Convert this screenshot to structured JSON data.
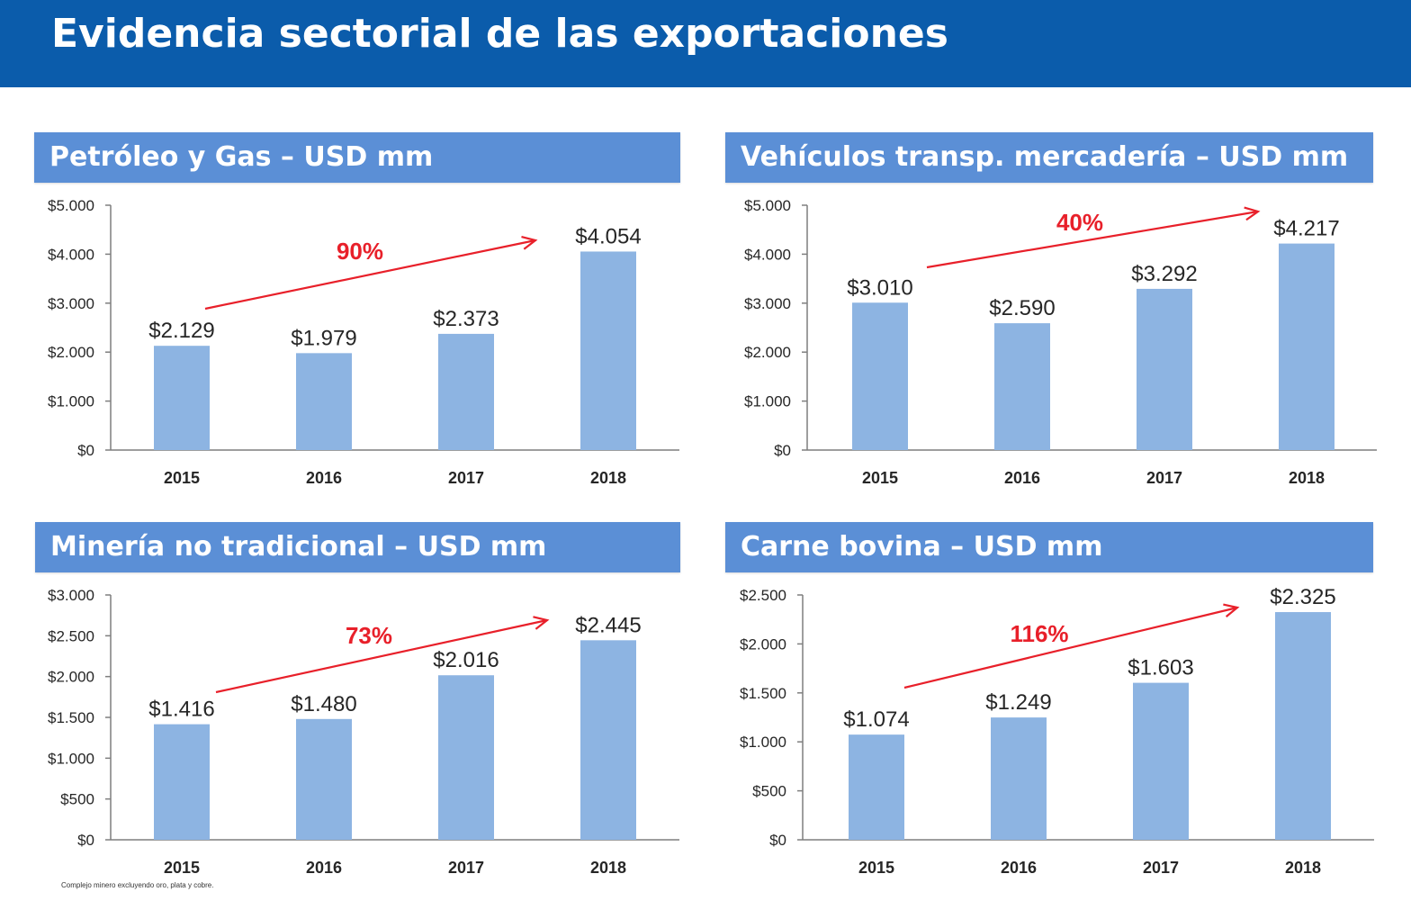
{
  "page": {
    "title": "Evidencia sectorial de las exportaciones",
    "footnote": "Complejo minero excluyendo oro, plata y cobre."
  },
  "colors": {
    "band": "#0b5cab",
    "header": "#5b8fd6",
    "bar": "#8db4e2",
    "arrow": "#e8202a",
    "text": "#262626"
  },
  "chart_data": [
    {
      "type": "bar",
      "title": "Petróleo y Gas – USD mm",
      "categories": [
        "2015",
        "2016",
        "2017",
        "2018"
      ],
      "values": [
        2129,
        1979,
        2373,
        4054
      ],
      "data_labels": [
        "$2.129",
        "$1.979",
        "$2.373",
        "$4.054"
      ],
      "ylim": [
        0,
        5000
      ],
      "y_ticks": [
        0,
        1000,
        2000,
        3000,
        4000,
        5000
      ],
      "y_tick_labels": [
        "$0",
        "$1.000",
        "$2.000",
        "$3.000",
        "$4.000",
        "$5.000"
      ],
      "growth_label": "90%",
      "grid": false
    },
    {
      "type": "bar",
      "title": "Vehículos transp. mercadería – USD mm",
      "categories": [
        "2015",
        "2016",
        "2017",
        "2018"
      ],
      "values": [
        3010,
        2590,
        3292,
        4217
      ],
      "data_labels": [
        "$3.010",
        "$2.590",
        "$3.292",
        "$4.217"
      ],
      "ylim": [
        0,
        5000
      ],
      "y_ticks": [
        0,
        1000,
        2000,
        3000,
        4000,
        5000
      ],
      "y_tick_labels": [
        "$0",
        "$1.000",
        "$2.000",
        "$3.000",
        "$4.000",
        "$5.000"
      ],
      "growth_label": "40%",
      "grid": false
    },
    {
      "type": "bar",
      "title": "Minería no tradicional – USD mm",
      "categories": [
        "2015",
        "2016",
        "2017",
        "2018"
      ],
      "values": [
        1416,
        1480,
        2016,
        2445
      ],
      "data_labels": [
        "$1.416",
        "$1.480",
        "$2.016",
        "$2.445"
      ],
      "ylim": [
        0,
        3000
      ],
      "y_ticks": [
        0,
        500,
        1000,
        1500,
        2000,
        2500,
        3000
      ],
      "y_tick_labels": [
        "$0",
        "$500",
        "$1.000",
        "$1.500",
        "$2.000",
        "$2.500",
        "$3.000"
      ],
      "growth_label": "73%",
      "grid": false
    },
    {
      "type": "bar",
      "title": "Carne bovina – USD mm",
      "categories": [
        "2015",
        "2016",
        "2017",
        "2018"
      ],
      "values": [
        1074,
        1249,
        1603,
        2325
      ],
      "data_labels": [
        "$1.074",
        "$1.249",
        "$1.603",
        "$2.325"
      ],
      "ylim": [
        0,
        2500
      ],
      "y_ticks": [
        0,
        500,
        1000,
        1500,
        2000,
        2500
      ],
      "y_tick_labels": [
        "$0",
        "$500",
        "$1.000",
        "$1.500",
        "$2.000",
        "$2.500"
      ],
      "growth_label": "116%",
      "grid": false
    }
  ]
}
